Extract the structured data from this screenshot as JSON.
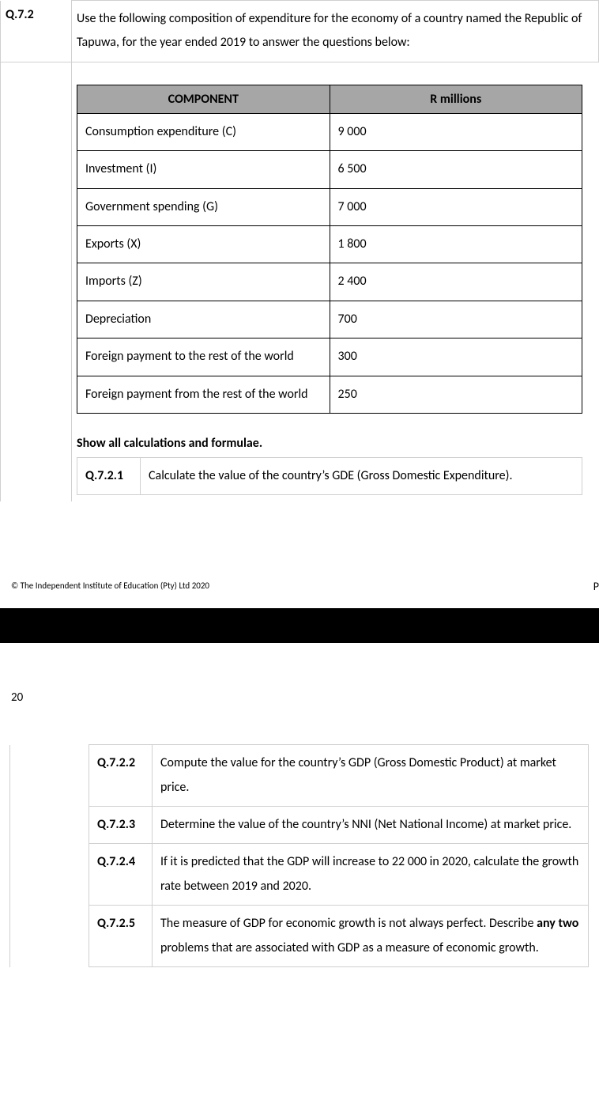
{
  "question_number": "Q.7.2",
  "prompt_text": "Use the following composition of expenditure for the economy of a country named the Republic of Tapuwa, for the year ended 2019 to answer the questions below:",
  "table": {
    "headers": {
      "c1": "COMPONENT",
      "c2": "R millions"
    },
    "rows": [
      {
        "component": "Consumption expenditure (C)",
        "value": "9 000"
      },
      {
        "component": "Investment (I)",
        "value": "6 500"
      },
      {
        "component": "Government spending (G)",
        "value": "7 000"
      },
      {
        "component": "Exports (X)",
        "value": "1 800"
      },
      {
        "component": "Imports (Z)",
        "value": "2 400"
      },
      {
        "component": "Depreciation",
        "value": "700"
      },
      {
        "component": "Foreign payment to the rest of the world",
        "value": "300"
      },
      {
        "component": "Foreign payment from the rest of the world",
        "value": "250"
      }
    ]
  },
  "instruction": "Show all calculations and formulae.",
  "subq1": {
    "num": "Q.7.2.1",
    "text": "Calculate the value of the country’s GDE (Gross Domestic Expenditure)."
  },
  "footer": {
    "copyright": "© The Independent Institute of Education (Pty) Ltd 2020",
    "page_letter": "P",
    "year": "20"
  },
  "subq_more": [
    {
      "num": "Q.7.2.2",
      "text": "Compute the value for the country’s GDP (Gross Domestic Product) at market price."
    },
    {
      "num": "Q.7.2.3",
      "text": "Determine the value of the country’s NNI (Net National Income) at market price."
    },
    {
      "num": "Q.7.2.4",
      "text": "If it is predicted that the GDP will increase to 22 000 in 2020, calculate the growth rate between 2019 and 2020."
    },
    {
      "num": "Q.7.2.5",
      "text_pre": "The measure of GDP for economic growth is not always perfect. Describe ",
      "text_bold": "any two",
      "text_post": " problems that are associated with GDP as a measure of economic growth."
    }
  ]
}
